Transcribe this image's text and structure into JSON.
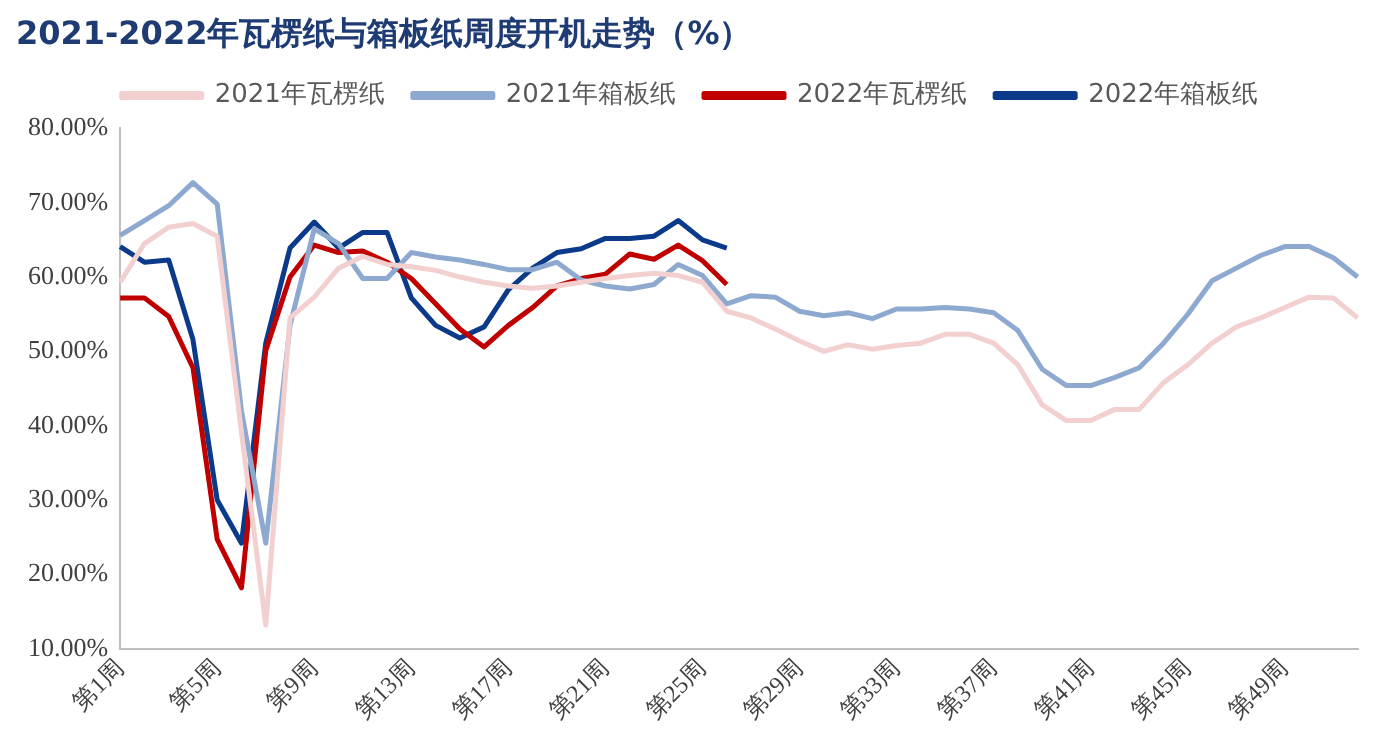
{
  "chart_data": {
    "type": "line",
    "title": "2021-2022年瓦楞纸与箱板纸周度开机走势（%）",
    "categories": [
      "第1周",
      null,
      null,
      null,
      "第5周",
      null,
      null,
      null,
      "第9周",
      null,
      null,
      null,
      "第13周",
      null,
      null,
      null,
      "第17周",
      null,
      null,
      null,
      "第21周",
      null,
      null,
      null,
      "第25周",
      null,
      null,
      null,
      "第29周",
      null,
      null,
      null,
      "第33周",
      null,
      null,
      null,
      "第37周",
      null,
      null,
      null,
      "第41周",
      null,
      null,
      null,
      "第45周",
      null,
      null,
      null,
      "第49周",
      null,
      null,
      null
    ],
    "series": [
      {
        "name": "2021年瓦楞纸",
        "color": "#f2d0d0",
        "values": [
          59.3,
          64.5,
          66.7,
          67.2,
          65.5,
          39.1,
          13.2,
          54.5,
          57.3,
          61.2,
          62.8,
          61.7,
          61.4,
          60.9,
          60.0,
          59.3,
          58.8,
          58.5,
          58.8,
          59.3,
          59.8,
          60.2,
          60.5,
          60.2,
          59.3,
          55.4,
          54.5,
          53.0,
          51.4,
          50.0,
          50.9,
          50.3,
          50.8,
          51.1,
          52.3,
          52.3,
          51.1,
          48.2,
          42.8,
          40.7,
          40.7,
          42.2,
          42.2,
          45.8,
          48.2,
          51.1,
          53.3,
          54.5,
          55.9,
          57.3,
          57.2,
          54.5
        ]
      },
      {
        "name": "2021年箱板纸",
        "color": "#8ea9d0",
        "values": [
          65.6,
          67.6,
          69.6,
          72.7,
          69.8,
          42.0,
          24.2,
          53.5,
          66.5,
          64.5,
          59.8,
          59.8,
          63.3,
          62.7,
          62.3,
          61.7,
          61.0,
          61.0,
          62.0,
          59.6,
          58.8,
          58.4,
          59.0,
          61.7,
          60.2,
          56.4,
          57.5,
          57.3,
          55.4,
          54.8,
          55.2,
          54.4,
          55.7,
          55.7,
          55.9,
          55.7,
          55.2,
          52.8,
          47.6,
          45.4,
          45.4,
          46.5,
          47.8,
          51.1,
          55.0,
          59.5,
          61.2,
          62.9,
          64.1,
          64.1,
          62.6,
          60.0
        ]
      },
      {
        "name": "2022年瓦楞纸",
        "color": "#c00000",
        "values": [
          57.2,
          57.2,
          54.7,
          47.8,
          24.7,
          18.2,
          50.1,
          60.0,
          64.3,
          63.3,
          63.5,
          62.0,
          59.8,
          56.4,
          53.0,
          50.6,
          53.5,
          55.9,
          58.8,
          59.8,
          60.4,
          63.1,
          62.4,
          64.3,
          62.2,
          59.0,
          null,
          null,
          null,
          null,
          null,
          null,
          null,
          null,
          null,
          null,
          null,
          null,
          null,
          null,
          null,
          null,
          null,
          null,
          null,
          null,
          null,
          null,
          null,
          null,
          null,
          null
        ]
      },
      {
        "name": "2022年箱板纸",
        "color": "#0c3a8a",
        "values": [
          64.1,
          62.0,
          62.3,
          51.6,
          30.0,
          24.2,
          51.1,
          63.9,
          67.4,
          63.9,
          66.0,
          66.0,
          57.2,
          53.5,
          51.8,
          53.3,
          58.3,
          61.2,
          63.3,
          63.8,
          65.2,
          65.2,
          65.5,
          67.6,
          65.0,
          63.9,
          null,
          null,
          null,
          null,
          null,
          null,
          null,
          null,
          null,
          null,
          null,
          null,
          null,
          null,
          null,
          null,
          null,
          null,
          null,
          null,
          null,
          null,
          null,
          null,
          null,
          null
        ]
      }
    ],
    "ylim": [
      10,
      80
    ],
    "yticks": [
      {
        "value": 10,
        "label": "10.00%"
      },
      {
        "value": 20,
        "label": "20.00%"
      },
      {
        "value": 30,
        "label": "30.00%"
      },
      {
        "value": 40,
        "label": "40.00%"
      },
      {
        "value": 50,
        "label": "50.00%"
      },
      {
        "value": 60,
        "label": "60.00%"
      },
      {
        "value": 70,
        "label": "70.00%"
      },
      {
        "value": 80,
        "label": "80.00%"
      }
    ],
    "grid": false,
    "legend": "top",
    "marker": "none",
    "line_style": "solid"
  }
}
